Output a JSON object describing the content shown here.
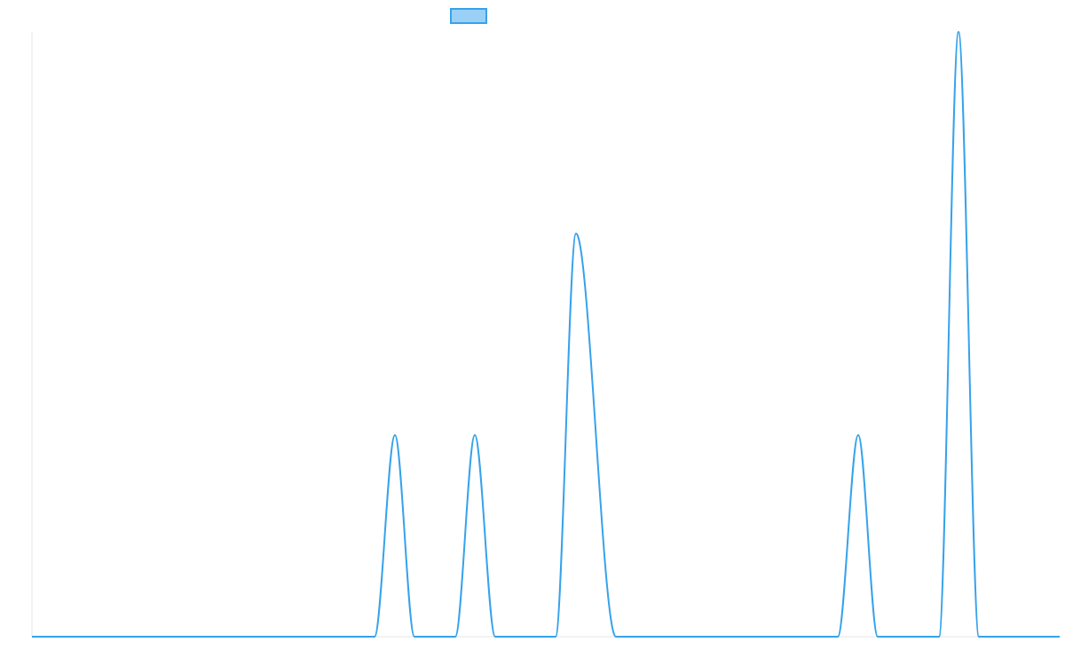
{
  "chart_data": {
    "type": "line",
    "title": "",
    "xlabel": "",
    "ylabel": "",
    "xlim": [
      0,
      1158
    ],
    "ylim": [
      0,
      3
    ],
    "grid": false,
    "legend": {
      "position": "top",
      "entries": [
        {
          "label": ""
        }
      ]
    },
    "x": [
      0,
      386,
      409,
      431,
      477,
      499,
      522,
      590,
      613,
      658,
      908,
      931,
      953,
      1022,
      1044,
      1067,
      1158
    ],
    "series": [
      {
        "name": "",
        "color": "#36a2eb",
        "fill": "#9ad0f5",
        "values": [
          0,
          0,
          1,
          0,
          0,
          1,
          0,
          0,
          2,
          0,
          0,
          1,
          0,
          0,
          3,
          0,
          0
        ]
      }
    ]
  }
}
